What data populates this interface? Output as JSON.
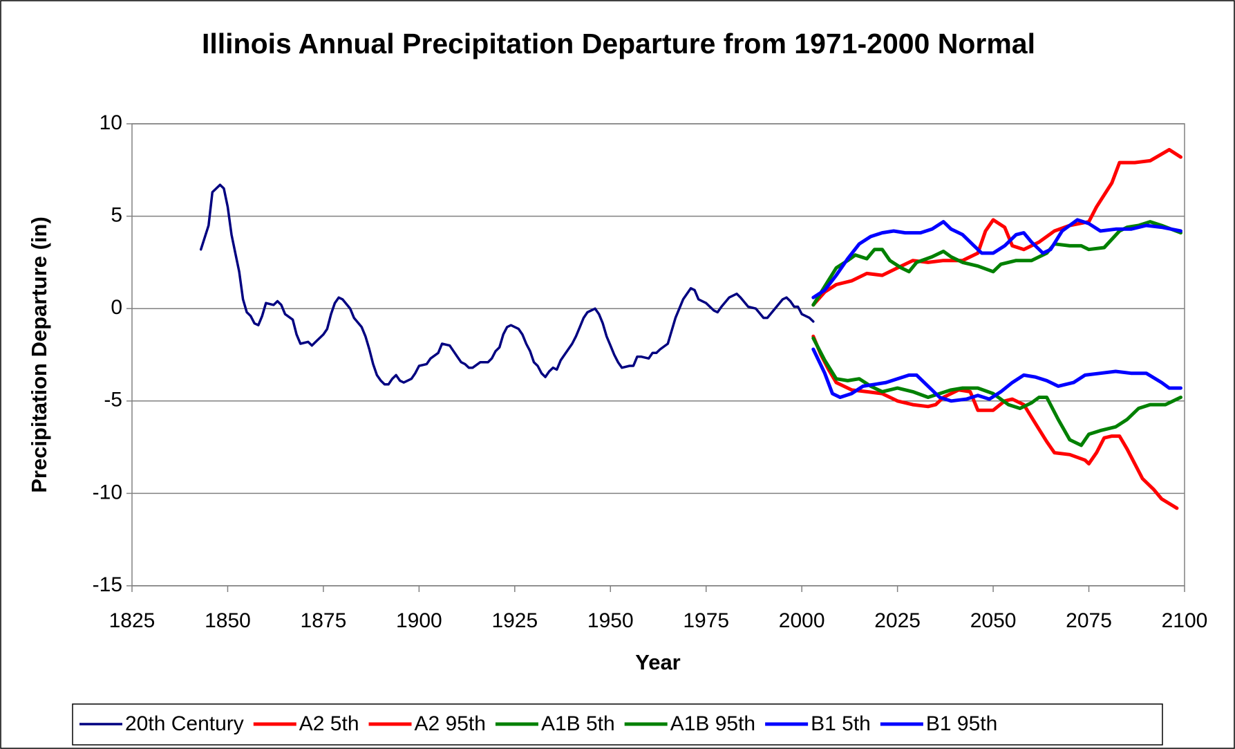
{
  "chart_data": {
    "type": "line",
    "title": "Illinois Annual Precipitation Departure from 1971-2000 Normal",
    "x_label": "Year",
    "y_label": "Precipitation Departure (in)",
    "xlim": [
      1825,
      2100
    ],
    "xticks": [
      1825,
      1850,
      1875,
      1900,
      1925,
      1950,
      1975,
      2000,
      2025,
      2050,
      2075,
      2100
    ],
    "ylim": [
      -15,
      10
    ],
    "yticks": [
      -15,
      -10,
      -5,
      0,
      5,
      10
    ],
    "grid": true,
    "legend": "bottom",
    "series": [
      {
        "name": "20th Century",
        "color": "#000080",
        "x": [
          1843,
          1845,
          1846,
          1848,
          1849,
          1850,
          1851,
          1852,
          1853,
          1854,
          1855,
          1856,
          1857,
          1858,
          1859,
          1860,
          1862,
          1863,
          1864,
          1865,
          1867,
          1868,
          1869,
          1871,
          1872,
          1873,
          1875,
          1876,
          1877,
          1878,
          1879,
          1880,
          1882,
          1883,
          1885,
          1886,
          1887,
          1888,
          1889,
          1890,
          1891,
          1892,
          1893,
          1894,
          1895,
          1896,
          1897,
          1898,
          1899,
          1900,
          1902,
          1903,
          1905,
          1906,
          1908,
          1909,
          1910,
          1911,
          1912,
          1913,
          1914,
          1916,
          1918,
          1919,
          1920,
          1921,
          1922,
          1923,
          1924,
          1926,
          1927,
          1928,
          1929,
          1930,
          1931,
          1932,
          1933,
          1934,
          1935,
          1936,
          1937,
          1938,
          1940,
          1941,
          1942,
          1943,
          1944,
          1946,
          1947,
          1948,
          1949,
          1950,
          1951,
          1952,
          1953,
          1955,
          1956,
          1957,
          1958,
          1960,
          1961,
          1962,
          1963,
          1965,
          1967,
          1969,
          1971,
          1972,
          1973,
          1975,
          1977,
          1978,
          1979,
          1981,
          1983,
          1984,
          1986,
          1988,
          1990,
          1991,
          1993,
          1995,
          1996,
          1997,
          1998,
          1999,
          2000,
          2002,
          2003
        ],
        "values": [
          3.2,
          4.5,
          6.3,
          6.7,
          6.5,
          5.5,
          4.0,
          3.0,
          2.0,
          0.5,
          -0.2,
          -0.4,
          -0.8,
          -0.9,
          -0.4,
          0.3,
          0.2,
          0.4,
          0.2,
          -0.3,
          -0.6,
          -1.4,
          -1.9,
          -1.8,
          -2.0,
          -1.8,
          -1.4,
          -1.1,
          -0.3,
          0.3,
          0.6,
          0.5,
          0.0,
          -0.5,
          -1.0,
          -1.5,
          -2.2,
          -3.0,
          -3.6,
          -3.9,
          -4.1,
          -4.1,
          -3.8,
          -3.6,
          -3.9,
          -4.0,
          -3.9,
          -3.8,
          -3.5,
          -3.1,
          -3.0,
          -2.7,
          -2.4,
          -1.9,
          -2.0,
          -2.3,
          -2.6,
          -2.9,
          -3.0,
          -3.2,
          -3.2,
          -2.9,
          -2.9,
          -2.7,
          -2.3,
          -2.1,
          -1.4,
          -1.0,
          -0.9,
          -1.1,
          -1.4,
          -1.9,
          -2.3,
          -2.9,
          -3.1,
          -3.5,
          -3.7,
          -3.4,
          -3.2,
          -3.3,
          -2.8,
          -2.5,
          -1.9,
          -1.5,
          -1.0,
          -0.5,
          -0.2,
          0.0,
          -0.3,
          -0.8,
          -1.5,
          -2.0,
          -2.5,
          -2.9,
          -3.2,
          -3.1,
          -3.1,
          -2.6,
          -2.6,
          -2.7,
          -2.4,
          -2.4,
          -2.2,
          -1.9,
          -0.5,
          0.5,
          1.1,
          1.0,
          0.5,
          0.3,
          -0.1,
          -0.2,
          0.1,
          0.6,
          0.8,
          0.6,
          0.1,
          0.0,
          -0.5,
          -0.5,
          0.0,
          0.5,
          0.6,
          0.4,
          0.1,
          0.1,
          -0.3,
          -0.5,
          -0.7
        ]
      },
      {
        "name": "A2 5th",
        "color": "#ff0000",
        "x": [
          2003,
          2005,
          2007,
          2009,
          2013,
          2017,
          2021,
          2025,
          2029,
          2033,
          2035,
          2037,
          2041,
          2044,
          2046,
          2050,
          2053,
          2055,
          2058,
          2061,
          2064,
          2066,
          2070,
          2074,
          2075,
          2077,
          2079,
          2081,
          2083,
          2085,
          2087,
          2089,
          2092,
          2094,
          2098
        ],
        "values": [
          -1.5,
          -2.5,
          -3.3,
          -4.0,
          -4.4,
          -4.5,
          -4.6,
          -5.0,
          -5.2,
          -5.3,
          -5.2,
          -4.8,
          -4.4,
          -4.5,
          -5.5,
          -5.5,
          -5.0,
          -4.9,
          -5.2,
          -6.2,
          -7.2,
          -7.8,
          -7.9,
          -8.2,
          -8.4,
          -7.8,
          -7.0,
          -6.9,
          -6.9,
          -7.6,
          -8.4,
          -9.2,
          -9.8,
          -10.3,
          -10.8
        ]
      },
      {
        "name": "A2 95th",
        "color": "#ff0000",
        "x": [
          2003,
          2006,
          2009,
          2013,
          2017,
          2021,
          2025,
          2029,
          2033,
          2037,
          2042,
          2046,
          2048,
          2050,
          2053,
          2055,
          2058,
          2062,
          2066,
          2070,
          2075,
          2077,
          2081,
          2083,
          2087,
          2091,
          2096,
          2099
        ],
        "values": [
          0.2,
          0.9,
          1.3,
          1.5,
          1.9,
          1.8,
          2.2,
          2.6,
          2.5,
          2.6,
          2.6,
          3.0,
          4.2,
          4.8,
          4.4,
          3.4,
          3.2,
          3.6,
          4.2,
          4.5,
          4.7,
          5.5,
          6.8,
          7.9,
          7.9,
          8.0,
          8.6,
          8.2
        ]
      },
      {
        "name": "A1B 5th",
        "color": "#008000",
        "x": [
          2003,
          2006,
          2009,
          2012,
          2015,
          2018,
          2021,
          2025,
          2029,
          2033,
          2036,
          2039,
          2042,
          2046,
          2050,
          2054,
          2057,
          2060,
          2062,
          2064,
          2067,
          2070,
          2073,
          2075,
          2078,
          2082,
          2085,
          2088,
          2091,
          2095,
          2099
        ],
        "values": [
          -1.6,
          -2.8,
          -3.8,
          -3.9,
          -3.8,
          -4.2,
          -4.5,
          -4.3,
          -4.5,
          -4.8,
          -4.6,
          -4.4,
          -4.3,
          -4.3,
          -4.6,
          -5.2,
          -5.4,
          -5.1,
          -4.8,
          -4.8,
          -6.0,
          -7.1,
          -7.4,
          -6.8,
          -6.6,
          -6.4,
          -6.0,
          -5.4,
          -5.2,
          -5.2,
          -4.8
        ]
      },
      {
        "name": "A1B 95th",
        "color": "#008000",
        "x": [
          2003,
          2006,
          2009,
          2012,
          2014,
          2017,
          2019,
          2021,
          2023,
          2026,
          2028,
          2030,
          2034,
          2037,
          2039,
          2042,
          2046,
          2050,
          2052,
          2056,
          2060,
          2064,
          2066,
          2070,
          2073,
          2075,
          2079,
          2083,
          2085,
          2088,
          2091,
          2094,
          2099
        ],
        "values": [
          0.2,
          1.2,
          2.2,
          2.6,
          2.9,
          2.7,
          3.2,
          3.2,
          2.6,
          2.2,
          2.0,
          2.5,
          2.8,
          3.1,
          2.8,
          2.5,
          2.3,
          2.0,
          2.4,
          2.6,
          2.6,
          3.0,
          3.5,
          3.4,
          3.4,
          3.2,
          3.3,
          4.2,
          4.4,
          4.5,
          4.7,
          4.5,
          4.1
        ]
      },
      {
        "name": "B1 5th",
        "color": "#0000ff",
        "x": [
          2003,
          2006,
          2008,
          2010,
          2013,
          2016,
          2019,
          2022,
          2025,
          2028,
          2030,
          2033,
          2036,
          2039,
          2043,
          2046,
          2049,
          2052,
          2055,
          2058,
          2061,
          2064,
          2067,
          2071,
          2074,
          2078,
          2082,
          2086,
          2090,
          2094,
          2096,
          2099
        ],
        "values": [
          -2.2,
          -3.5,
          -4.6,
          -4.8,
          -4.6,
          -4.2,
          -4.1,
          -4.0,
          -3.8,
          -3.6,
          -3.6,
          -4.2,
          -4.8,
          -5.0,
          -4.9,
          -4.7,
          -4.9,
          -4.5,
          -4.0,
          -3.6,
          -3.7,
          -3.9,
          -4.2,
          -4.0,
          -3.6,
          -3.5,
          -3.4,
          -3.5,
          -3.5,
          -4.0,
          -4.3,
          -4.3
        ]
      },
      {
        "name": "B1 95th",
        "color": "#0000ff",
        "x": [
          2003,
          2006,
          2009,
          2012,
          2015,
          2018,
          2021,
          2024,
          2027,
          2031,
          2034,
          2037,
          2039,
          2042,
          2045,
          2047,
          2050,
          2053,
          2056,
          2058,
          2060,
          2063,
          2065,
          2068,
          2072,
          2075,
          2078,
          2082,
          2086,
          2090,
          2094,
          2099
        ],
        "values": [
          0.6,
          1.0,
          1.8,
          2.7,
          3.5,
          3.9,
          4.1,
          4.2,
          4.1,
          4.1,
          4.3,
          4.7,
          4.3,
          4.0,
          3.4,
          3.0,
          3.0,
          3.4,
          4.0,
          4.1,
          3.6,
          3.0,
          3.2,
          4.2,
          4.8,
          4.6,
          4.2,
          4.3,
          4.3,
          4.5,
          4.4,
          4.2
        ]
      }
    ]
  }
}
